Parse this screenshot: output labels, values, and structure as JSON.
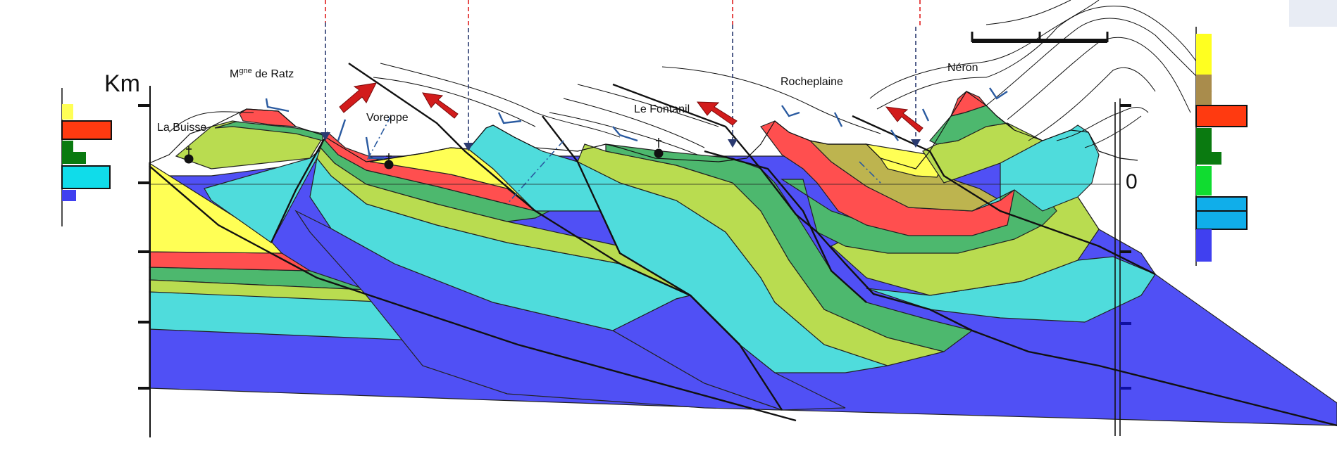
{
  "figure": {
    "axis_unit": "Km",
    "zero_label": "0",
    "places": {
      "la_buisse": "La Buisse",
      "montagne_de_ratz": "Mgne de Ratz",
      "voreppe": "Voreppe",
      "le_fontanil": "Le Fontanil",
      "rocheplaine": "Rocheplaine",
      "neron": "Néron"
    }
  },
  "colors": {
    "yellow": "#ffff55",
    "red": "#ff4f4f",
    "green": "#4db86e",
    "lime": "#b9dc50",
    "cyan": "#4fdcdc",
    "blue": "#5050f5",
    "olive": "#bdb44f",
    "arrow": "#d21c1c",
    "legend_brown": "#a98c4c",
    "legend_red": "#ff3a10",
    "legend_darkgreen": "#0a7a10",
    "legend_brightgreen": "#10dc30",
    "legend_skyblue": "#10aeea"
  }
}
